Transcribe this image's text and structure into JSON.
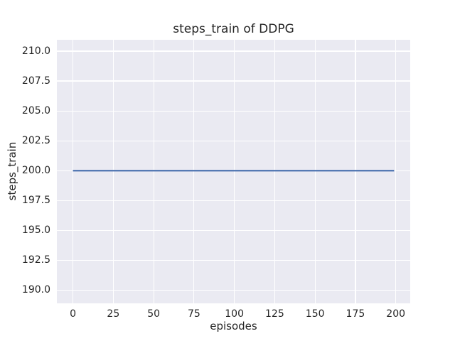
{
  "chart_data": {
    "type": "line",
    "title": "steps_train of DDPG",
    "xlabel": "episodes",
    "ylabel": "steps_train",
    "xlim": [
      -9.95,
      208.95
    ],
    "ylim": [
      188.9,
      210.95
    ],
    "xticks": [
      0,
      25,
      50,
      75,
      100,
      125,
      150,
      175,
      200
    ],
    "xtick_labels": [
      "0",
      "25",
      "50",
      "75",
      "100",
      "125",
      "150",
      "175",
      "200"
    ],
    "yticks": [
      190.0,
      192.5,
      195.0,
      197.5,
      200.0,
      202.5,
      205.0,
      207.5,
      210.0
    ],
    "ytick_labels": [
      "190.0",
      "192.5",
      "195.0",
      "197.5",
      "200.0",
      "202.5",
      "205.0",
      "207.5",
      "210.0"
    ],
    "grid": true,
    "legend": "none",
    "series": [
      {
        "name": "steps_train",
        "x": [
          0,
          199
        ],
        "y": [
          200,
          200
        ],
        "color": "#4c72b0",
        "linewidth": 2.2
      }
    ]
  },
  "colors": {
    "figure_bg": "#ffffff",
    "axes_bg": "#eaeaf2",
    "grid": "#ffffff",
    "text": "#262626"
  }
}
